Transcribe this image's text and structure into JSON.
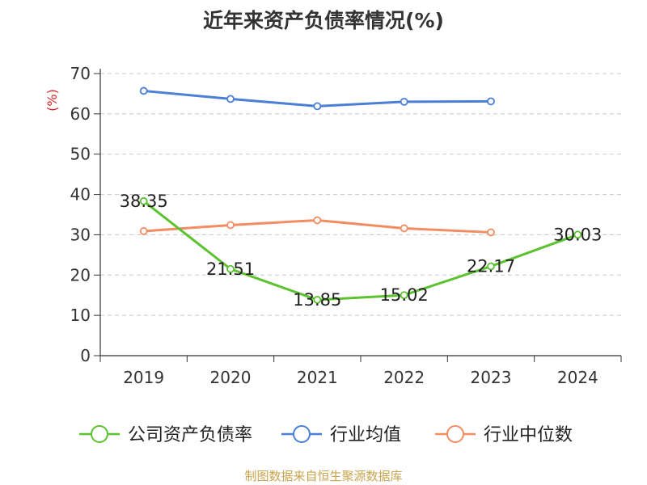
{
  "title": "近年来资产负债率情况(%)",
  "source": "制图数据来自恒生聚源数据库",
  "chart_data": {
    "type": "line",
    "title": "近年来资产负债率情况(%)",
    "ylabel": "(%)",
    "xlabel": "",
    "categories": [
      "2019",
      "2020",
      "2021",
      "2022",
      "2023",
      "2024"
    ],
    "ylim": [
      0,
      70
    ],
    "yticks": [
      0,
      10,
      20,
      30,
      40,
      50,
      60,
      70
    ],
    "grid": true,
    "legend_position": "bottom",
    "series": [
      {
        "name": "公司资产负债率",
        "color": "#5cc22f",
        "values": [
          38.35,
          21.51,
          13.85,
          15.02,
          22.17,
          30.03
        ],
        "labels": [
          "38.35",
          "21.51",
          "13.85",
          "15.02",
          "22.17",
          "30.03"
        ]
      },
      {
        "name": "行业均值",
        "color": "#4b7fd6",
        "values": [
          65.7,
          63.7,
          61.9,
          63.0,
          63.1,
          null
        ]
      },
      {
        "name": "行业中位数",
        "color": "#f28c61",
        "values": [
          30.9,
          32.4,
          33.6,
          31.6,
          30.6,
          null
        ]
      }
    ]
  }
}
